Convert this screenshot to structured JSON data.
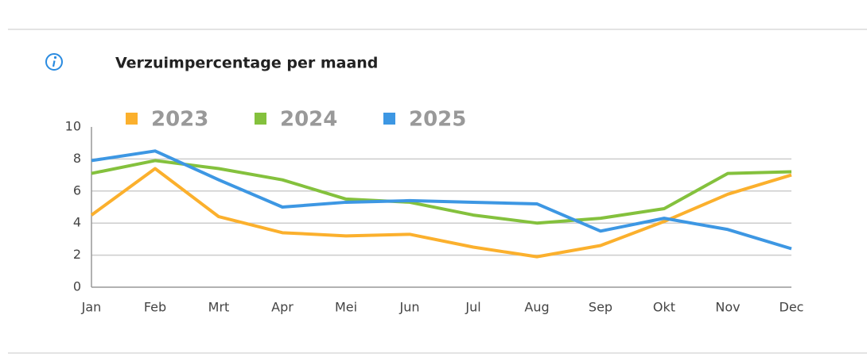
{
  "chart_data": {
    "type": "line",
    "title": "Verzuimpercentage per maand",
    "categories": [
      "Jan",
      "Feb",
      "Mrt",
      "Apr",
      "Mei",
      "Jun",
      "Jul",
      "Aug",
      "Sep",
      "Okt",
      "Nov",
      "Dec"
    ],
    "series": [
      {
        "name": "2023",
        "color": "#fbb02d",
        "values": [
          4.5,
          7.4,
          4.4,
          3.4,
          3.2,
          3.3,
          2.5,
          1.9,
          2.6,
          4.1,
          5.8,
          7.0
        ]
      },
      {
        "name": "2024",
        "color": "#84c13d",
        "values": [
          7.1,
          7.9,
          7.4,
          6.7,
          5.5,
          5.3,
          4.5,
          4.0,
          4.3,
          4.9,
          7.1,
          7.2
        ]
      },
      {
        "name": "2025",
        "color": "#3d97e3",
        "values": [
          7.9,
          8.5,
          6.7,
          5.0,
          5.3,
          5.4,
          5.3,
          5.2,
          3.5,
          4.3,
          3.6,
          2.4
        ]
      }
    ],
    "ylim": [
      0,
      10
    ],
    "yticks": [
      0,
      2,
      4,
      6,
      8,
      10
    ],
    "grid": true
  }
}
